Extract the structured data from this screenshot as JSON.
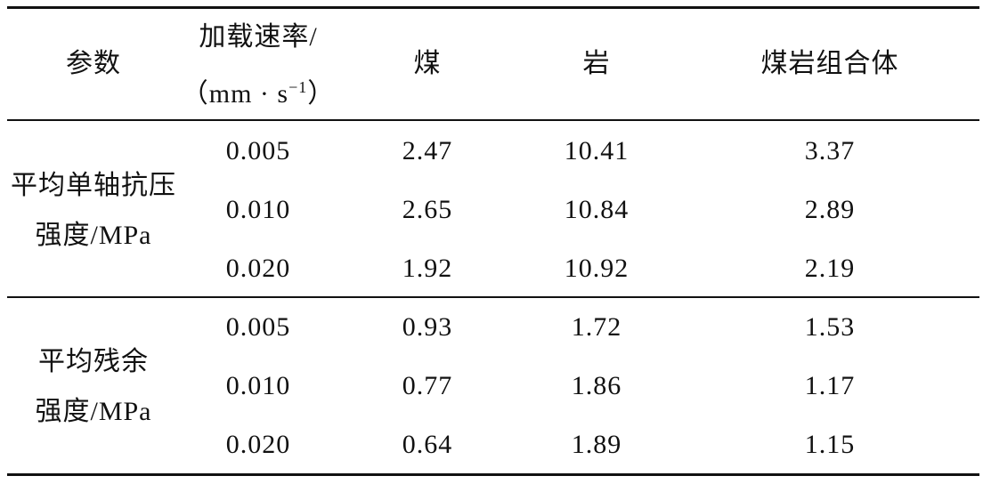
{
  "header": {
    "cells": [
      "参数",
      {
        "line1": "加载速率/",
        "line2_open": "（mm · s",
        "line2_sup": "−1",
        "line2_close": "）"
      },
      "煤",
      "岩",
      "煤岩组合体"
    ]
  },
  "groups": [
    {
      "label_lines": [
        "平均单轴抗压",
        "强度/MPa"
      ],
      "rows": [
        [
          "0.005",
          "2.47",
          "10.41",
          "3.37"
        ],
        [
          "0.010",
          "2.65",
          "10.84",
          "2.89"
        ],
        [
          "0.020",
          "1.92",
          "10.92",
          "2.19"
        ]
      ]
    },
    {
      "label_lines": [
        "平均残余",
        "强度/MPa"
      ],
      "rows": [
        [
          "0.005",
          "0.93",
          "1.72",
          "1.53"
        ],
        [
          "0.010",
          "0.77",
          "1.86",
          "1.17"
        ],
        [
          "0.020",
          "0.64",
          "1.89",
          "1.15"
        ]
      ]
    }
  ]
}
